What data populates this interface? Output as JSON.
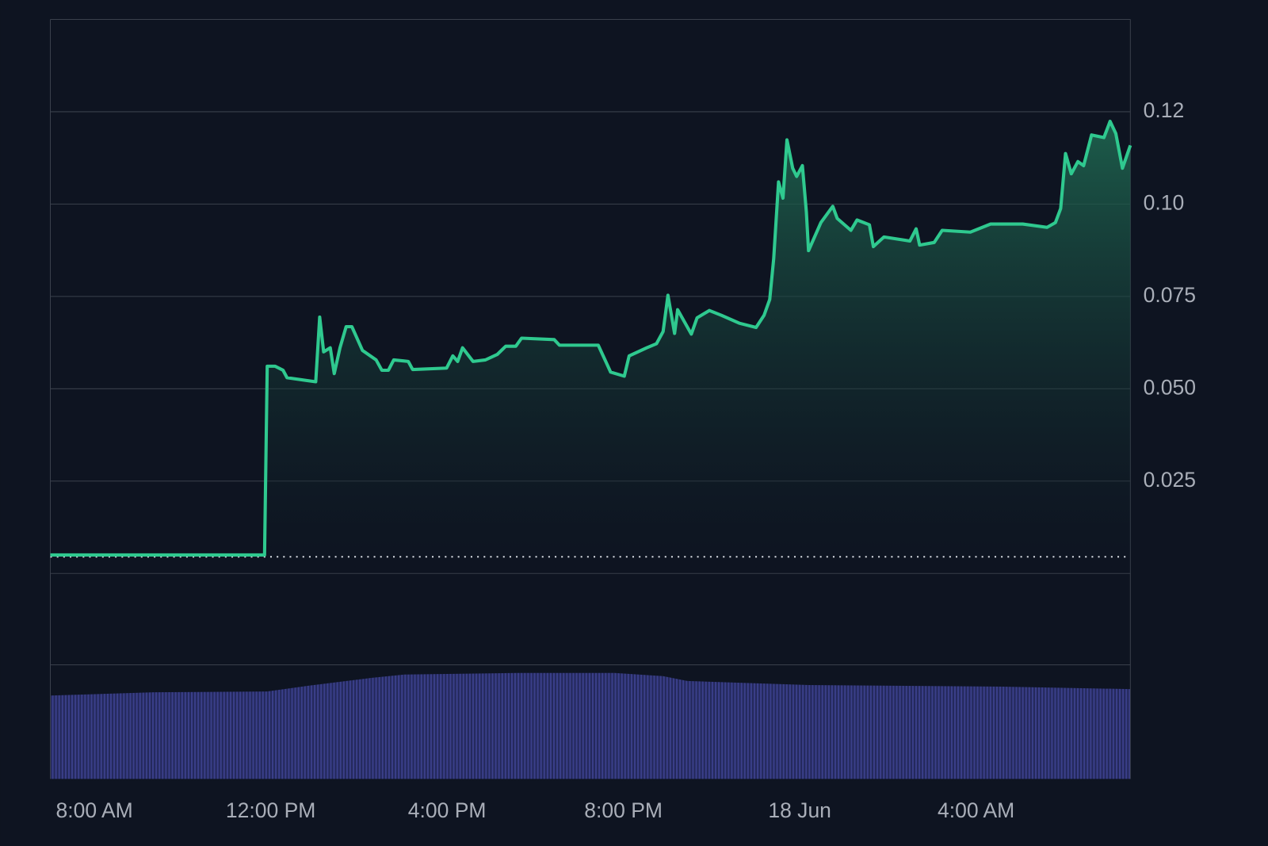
{
  "chart_data": {
    "type": "line",
    "x": [
      7.0,
      11.86,
      11.92,
      12.1,
      12.28,
      12.37,
      13.02,
      13.11,
      13.2,
      13.35,
      13.44,
      13.57,
      13.71,
      13.84,
      14.08,
      14.39,
      14.52,
      14.67,
      14.79,
      15.12,
      15.22,
      15.99,
      16.13,
      16.24,
      16.35,
      16.59,
      16.87,
      17.14,
      17.33,
      17.56,
      17.69,
      18.43,
      18.55,
      19.43,
      19.71,
      20.02,
      20.13,
      20.53,
      20.75,
      20.9,
      21.01,
      21.16,
      21.23,
      21.54,
      21.67,
      21.95,
      22.22,
      22.64,
      23.01,
      23.19,
      23.32,
      23.41,
      23.52,
      23.62,
      23.71,
      23.84,
      23.93,
      24.06,
      24.15,
      24.2,
      24.48,
      24.75,
      24.85,
      25.16,
      25.3,
      25.58,
      25.67,
      25.91,
      26.5,
      26.64,
      26.72,
      27.05,
      27.23,
      27.87,
      28.33,
      29.06,
      29.61,
      29.8,
      29.92,
      30.03,
      30.16,
      30.31,
      30.44,
      30.62,
      30.9,
      31.04,
      31.17,
      31.32,
      31.5
    ],
    "series": [
      {
        "color": "#2fc98f",
        "values": [
          0.005,
          0.005,
          0.0561,
          0.0561,
          0.055,
          0.053,
          0.0519,
          0.0694,
          0.06,
          0.0611,
          0.0541,
          0.0611,
          0.0668,
          0.0668,
          0.0604,
          0.0578,
          0.055,
          0.055,
          0.0578,
          0.0574,
          0.0552,
          0.0556,
          0.0589,
          0.0574,
          0.0611,
          0.0574,
          0.0578,
          0.0593,
          0.0615,
          0.0615,
          0.0637,
          0.0633,
          0.0618,
          0.0618,
          0.0545,
          0.0534,
          0.0589,
          0.0611,
          0.0622,
          0.0655,
          0.0753,
          0.065,
          0.0714,
          0.0648,
          0.0692,
          0.0712,
          0.0699,
          0.0677,
          0.0666,
          0.0699,
          0.0742,
          0.0852,
          0.106,
          0.1016,
          0.1174,
          0.1097,
          0.1075,
          0.1104,
          0.0979,
          0.0874,
          0.095,
          0.0994,
          0.0961,
          0.0929,
          0.0957,
          0.0944,
          0.0885,
          0.0911,
          0.09,
          0.0933,
          0.0889,
          0.0896,
          0.0929,
          0.0924,
          0.0946,
          0.0946,
          0.0937,
          0.095,
          0.0988,
          0.1137,
          0.1082,
          0.1115,
          0.1104,
          0.1187,
          0.118,
          0.1224,
          0.1191,
          0.1097,
          0.1159
        ]
      }
    ],
    "xlim": [
      7,
      31.5
    ],
    "xticks": [
      {
        "value": 8,
        "label": "8:00 AM"
      },
      {
        "value": 12,
        "label": "12:00 PM"
      },
      {
        "value": 16,
        "label": "4:00 PM"
      },
      {
        "value": 20,
        "label": "8:00 PM"
      },
      {
        "value": 24,
        "label": "18 Jun"
      },
      {
        "value": 28,
        "label": "4:00 AM"
      }
    ],
    "ylim": [
      0,
      0.15
    ],
    "yticks": [
      0.025,
      {
        "value": 0.05,
        "label": "0.050"
      },
      0.075,
      {
        "value": 0.1,
        "label": "0.10"
      },
      {
        "value": 0.125,
        "label": "0.12"
      }
    ],
    "grid": true,
    "reference_line": 0.0045
  }
}
